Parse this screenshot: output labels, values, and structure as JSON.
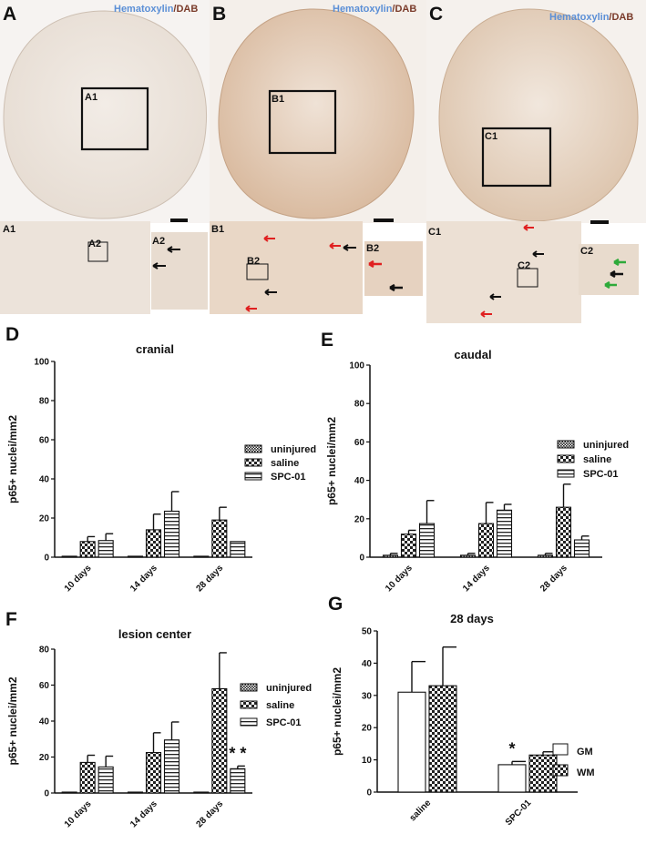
{
  "figure": {
    "stain_hematoxylin": "Hematoxylin",
    "stain_slash": "/",
    "stain_dab": "DAB",
    "panels": [
      {
        "letter": "A",
        "box": "A1",
        "inset": "A1",
        "sub_box": "A2",
        "zoom": "A2"
      },
      {
        "letter": "B",
        "box": "B1",
        "inset": "B1",
        "sub_box": "B2",
        "zoom": "B2"
      },
      {
        "letter": "C",
        "box": "C1",
        "inset": "C1",
        "sub_box": "C2",
        "zoom": "C2"
      }
    ]
  },
  "colors": {
    "hematoxylin": "#5b8fd6",
    "dab": "#7a3b2a",
    "arrow_black": "#111111",
    "arrow_red": "#e02020",
    "arrow_green": "#2eaa3a"
  },
  "chart_data": [
    {
      "panel": "D",
      "type": "bar",
      "title": "cranial",
      "ylabel": "p65+ nuclei/mm2",
      "ylim": [
        0,
        100
      ],
      "yticks": [
        0,
        20,
        40,
        60,
        80,
        100
      ],
      "categories": [
        "10 days",
        "14 days",
        "28 days"
      ],
      "series": [
        {
          "name": "uninjured",
          "pattern": "dense-check",
          "values": [
            0.5,
            0.5,
            0.5
          ],
          "errors": [
            0,
            0,
            0
          ]
        },
        {
          "name": "saline",
          "pattern": "checker",
          "values": [
            8,
            14,
            19
          ],
          "errors": [
            2.5,
            8,
            6.5
          ]
        },
        {
          "name": "SPC-01",
          "pattern": "horizontal-lines",
          "values": [
            8.5,
            23.5,
            8
          ],
          "errors": [
            3.5,
            10,
            0
          ]
        }
      ],
      "legend_position": "right",
      "annotations": []
    },
    {
      "panel": "E",
      "type": "bar",
      "title": "caudal",
      "ylabel": "p65+ nuclei/mm2",
      "ylim": [
        0,
        100
      ],
      "yticks": [
        0,
        20,
        40,
        60,
        80,
        100
      ],
      "categories": [
        "10 days",
        "14 days",
        "28 days"
      ],
      "series": [
        {
          "name": "uninjured",
          "pattern": "dense-check",
          "values": [
            1,
            1,
            1
          ],
          "errors": [
            1,
            1,
            1
          ]
        },
        {
          "name": "saline",
          "pattern": "checker",
          "values": [
            12,
            17.5,
            26
          ],
          "errors": [
            2,
            11,
            12
          ]
        },
        {
          "name": "SPC-01",
          "pattern": "horizontal-lines",
          "values": [
            17.5,
            24.5,
            9
          ],
          "errors": [
            12,
            3,
            2
          ]
        }
      ],
      "legend_position": "right",
      "annotations": []
    },
    {
      "panel": "F",
      "type": "bar",
      "title": "lesion center",
      "ylabel": "p65+ nuclei/mm2",
      "ylim": [
        0,
        80
      ],
      "yticks": [
        0,
        20,
        40,
        60,
        80
      ],
      "categories": [
        "10 days",
        "14 days",
        "28 days"
      ],
      "series": [
        {
          "name": "uninjured",
          "pattern": "dense-check",
          "values": [
            0.5,
            0.5,
            0.5
          ],
          "errors": [
            0,
            0,
            0
          ]
        },
        {
          "name": "saline",
          "pattern": "checker",
          "values": [
            17,
            22.5,
            58
          ],
          "errors": [
            4,
            11,
            20
          ]
        },
        {
          "name": "SPC-01",
          "pattern": "horizontal-lines",
          "values": [
            14.5,
            29.5,
            13.5
          ],
          "errors": [
            6,
            10,
            1.5
          ]
        }
      ],
      "legend_position": "right",
      "annotations": [
        {
          "text": "* *",
          "category": "28 days",
          "series": "SPC-01"
        }
      ]
    },
    {
      "panel": "G",
      "type": "bar",
      "title": "28 days",
      "ylabel": "p65+ nuclei/mm2",
      "ylim": [
        0,
        50
      ],
      "yticks": [
        0,
        10,
        20,
        30,
        40,
        50
      ],
      "categories": [
        "saline",
        "SPC-01"
      ],
      "series": [
        {
          "name": "GM",
          "pattern": "open",
          "values": [
            31,
            8.5
          ],
          "errors": [
            9.5,
            1
          ]
        },
        {
          "name": "WM",
          "pattern": "checker",
          "values": [
            33,
            11.5
          ],
          "errors": [
            12,
            1
          ]
        }
      ],
      "legend_position": "right",
      "annotations": [
        {
          "text": "*",
          "category": "SPC-01",
          "series": "GM"
        }
      ]
    }
  ]
}
